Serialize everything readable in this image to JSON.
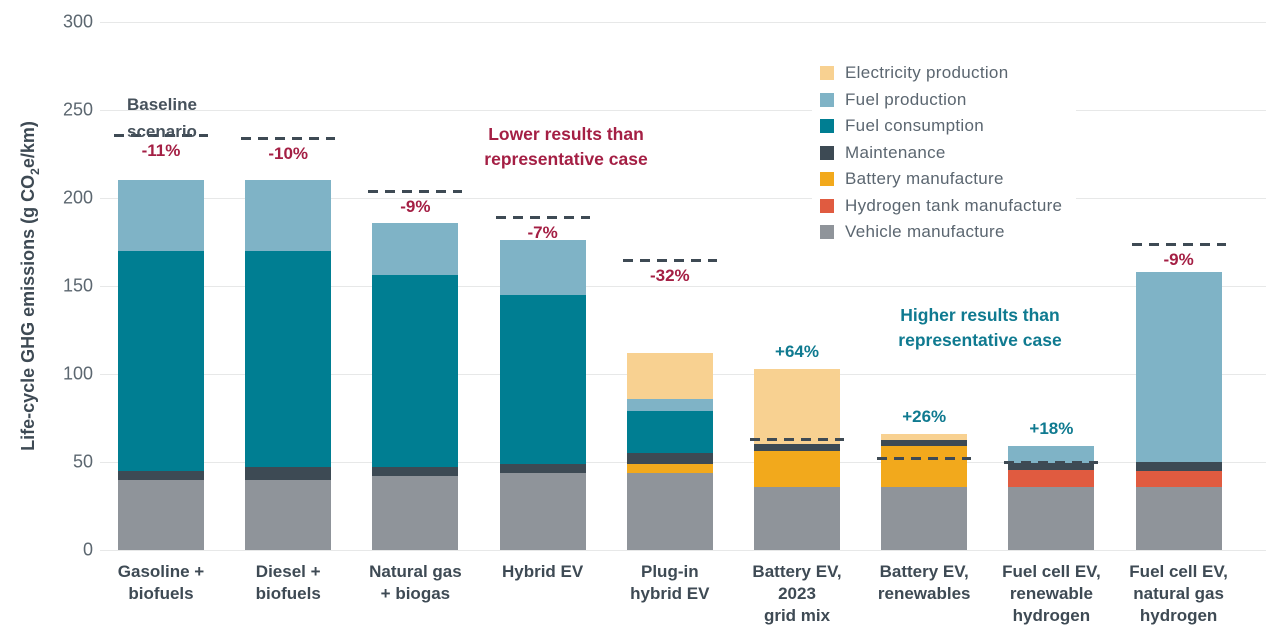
{
  "colors": {
    "lower_accent": "#A41F44",
    "higher_accent": "#0F7A90",
    "dash": "#3E4A54",
    "grid": "#E7E8E8",
    "axis_tick_text": "#5C6770",
    "axis_label_text": "#3E4A54",
    "legend_text": "#5B6670"
  },
  "axes": {
    "y_title_pre": "Life-cycle GHG emissions (g CO",
    "y_title_sub": "2",
    "y_title_post": "e/km)"
  },
  "annotations": {
    "baseline_label": {
      "lines": [
        "Baseline",
        "scenario"
      ]
    },
    "lower_note": {
      "lines": [
        "Lower results than",
        "representative case"
      ]
    },
    "higher_note": {
      "lines": [
        "Higher results than",
        "representative case"
      ]
    }
  },
  "chart_data": {
    "type": "bar",
    "stacked": true,
    "title": "",
    "ylabel": "Life-cycle GHG emissions (g CO2e/km)",
    "ylim": [
      0,
      300
    ],
    "yticks": [
      0,
      50,
      100,
      150,
      200,
      250,
      300
    ],
    "grid": true,
    "legend_position": "top-right",
    "stack_order": [
      "vehicle_manufacture",
      "hydrogen_tank_manufacture",
      "battery_manufacture",
      "maintenance",
      "fuel_consumption",
      "fuel_production",
      "electricity_production"
    ],
    "legend": [
      {
        "key": "electricity_production",
        "label": "Electricity production",
        "color": "#F8D191"
      },
      {
        "key": "fuel_production",
        "label": "Fuel production",
        "color": "#7FB3C6"
      },
      {
        "key": "fuel_consumption",
        "label": "Fuel consumption",
        "color": "#007E92"
      },
      {
        "key": "maintenance",
        "label": "Maintenance",
        "color": "#3D4A54"
      },
      {
        "key": "battery_manufacture",
        "label": "Battery manufacture",
        "color": "#F2A91C"
      },
      {
        "key": "hydrogen_tank_manufacture",
        "label": "Hydrogen tank manufacture",
        "color": "#E05B40"
      },
      {
        "key": "vehicle_manufacture",
        "label": "Vehicle manufacture",
        "color": "#8F949A"
      }
    ],
    "bars": [
      {
        "category_lines": [
          "Gasoline +",
          "biofuels"
        ],
        "segments": {
          "vehicle_manufacture": 40,
          "maintenance": 5,
          "fuel_consumption": 125,
          "fuel_production": 40
        },
        "total": 210,
        "baseline": 236,
        "delta_label": "-11%",
        "delta_type": "lower"
      },
      {
        "category_lines": [
          "Diesel +",
          "biofuels"
        ],
        "segments": {
          "vehicle_manufacture": 40,
          "maintenance": 7,
          "fuel_consumption": 123,
          "fuel_production": 40
        },
        "total": 210,
        "baseline": 234,
        "delta_label": "-10%",
        "delta_type": "lower"
      },
      {
        "category_lines": [
          "Natural gas",
          "+ biogas"
        ],
        "segments": {
          "vehicle_manufacture": 42,
          "maintenance": 5,
          "fuel_consumption": 109,
          "fuel_production": 30
        },
        "total": 186,
        "baseline": 204,
        "delta_label": "-9%",
        "delta_type": "lower"
      },
      {
        "category_lines": [
          "Hybrid EV"
        ],
        "segments": {
          "vehicle_manufacture": 44,
          "maintenance": 5,
          "fuel_consumption": 96,
          "fuel_production": 31
        },
        "total": 176,
        "baseline": 189,
        "delta_label": "-7%",
        "delta_type": "lower"
      },
      {
        "category_lines": [
          "Plug-in",
          "hybrid EV"
        ],
        "segments": {
          "vehicle_manufacture": 44,
          "battery_manufacture": 5,
          "maintenance": 6,
          "fuel_consumption": 24,
          "fuel_production": 7,
          "electricity_production": 26
        },
        "total": 112,
        "baseline": 165,
        "delta_label": "-32%",
        "delta_type": "lower"
      },
      {
        "category_lines": [
          "Battery EV,",
          "2023",
          "grid mix"
        ],
        "segments": {
          "vehicle_manufacture": 36,
          "battery_manufacture": 20,
          "maintenance": 4,
          "electricity_production": 43
        },
        "total": 103,
        "baseline": 63,
        "delta_label": "+64%",
        "delta_type": "higher"
      },
      {
        "category_lines": [
          "Battery EV,",
          "renewables"
        ],
        "segments": {
          "vehicle_manufacture": 36,
          "battery_manufacture": 23,
          "maintenance": 3.5,
          "electricity_production": 3.5
        },
        "total": 66,
        "baseline": 52,
        "delta_label": "+26%",
        "delta_type": "higher"
      },
      {
        "category_lines": [
          "Fuel cell EV,",
          "renewable",
          "hydrogen"
        ],
        "segments": {
          "vehicle_manufacture": 36,
          "hydrogen_tank_manufacture": 9.5,
          "maintenance": 4,
          "fuel_production": 9.5
        },
        "total": 59,
        "baseline": 50,
        "delta_label": "+18%",
        "delta_type": "higher"
      },
      {
        "category_lines": [
          "Fuel cell EV,",
          "natural gas",
          "hydrogen"
        ],
        "segments": {
          "vehicle_manufacture": 36,
          "hydrogen_tank_manufacture": 9,
          "maintenance": 5,
          "fuel_production": 108
        },
        "total": 158,
        "baseline": 174,
        "delta_label": "-9%",
        "delta_type": "lower"
      }
    ]
  }
}
